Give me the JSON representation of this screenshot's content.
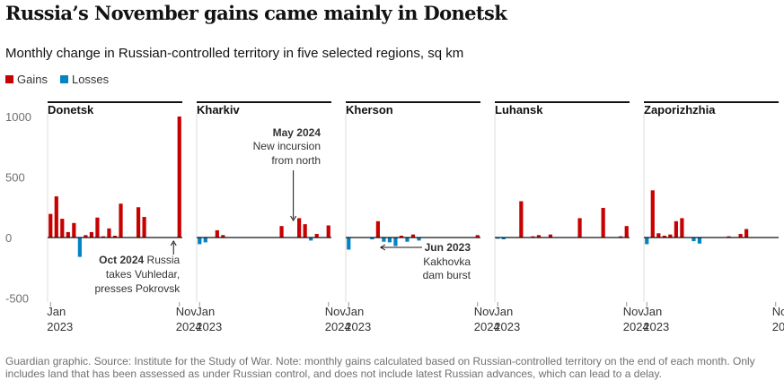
{
  "title": "Russia’s November gains came mainly in Donetsk",
  "subtitle": "Monthly change in Russian-controlled territory in five selected regions, sq km",
  "legend": {
    "gains_label": "Gains",
    "losses_label": "Losses",
    "gains_color": "#c70000",
    "losses_color": "#0084c6"
  },
  "footer": "Guardian graphic. Source: Institute for the Study of War. Note: monthly gains calculated based on Russian-controlled territory on the end of each month. Only includes land that has been assessed as under Russian control, and does not include latest Russian advances, which can lead to a delay.",
  "chart_data": {
    "type": "bar",
    "months": [
      "Jan 2023",
      "Feb 2023",
      "Mar 2023",
      "Apr 2023",
      "May 2023",
      "Jun 2023",
      "Jul 2023",
      "Aug 2023",
      "Sep 2023",
      "Oct 2023",
      "Nov 2023",
      "Dec 2023",
      "Jan 2024",
      "Feb 2024",
      "Mar 2024",
      "Apr 2024",
      "May 2024",
      "Jun 2024",
      "Jul 2024",
      "Aug 2024",
      "Sep 2024",
      "Oct 2024",
      "Nov 2024"
    ],
    "ylim": [
      -500,
      1000
    ],
    "yticks": [
      1000,
      500,
      0,
      -500
    ],
    "grid": false,
    "x_tick_labels": [
      {
        "month": 0,
        "top": "Jan",
        "bottom": "2023"
      },
      {
        "month": 22,
        "top": "Nov",
        "bottom": "2024"
      }
    ],
    "panels": [
      {
        "name": "Donetsk",
        "values": [
          195,
          340,
          155,
          45,
          120,
          -160,
          20,
          45,
          165,
          10,
          75,
          15,
          280,
          0,
          0,
          250,
          170,
          0,
          0,
          0,
          0,
          0,
          1000
        ]
      },
      {
        "name": "Kharkiv",
        "values": [
          -55,
          -40,
          0,
          60,
          20,
          0,
          0,
          0,
          0,
          0,
          0,
          0,
          0,
          0,
          95,
          0,
          0,
          160,
          110,
          -25,
          30,
          0,
          100
        ]
      },
      {
        "name": "Kherson",
        "values": [
          -100,
          0,
          0,
          0,
          -15,
          135,
          -35,
          -40,
          -70,
          15,
          -35,
          25,
          -25,
          0,
          0,
          0,
          0,
          0,
          0,
          0,
          0,
          0,
          20
        ]
      },
      {
        "name": "Luhansk",
        "values": [
          -10,
          -15,
          0,
          0,
          300,
          0,
          10,
          20,
          0,
          25,
          0,
          0,
          0,
          0,
          160,
          0,
          0,
          0,
          245,
          0,
          0,
          10,
          95
        ]
      },
      {
        "name": "Zaporizhzhia",
        "values": [
          -55,
          390,
          35,
          15,
          25,
          135,
          160,
          0,
          -30,
          -50,
          0,
          0,
          0,
          0,
          10,
          0,
          30,
          70,
          0,
          0,
          0,
          0,
          0
        ]
      }
    ],
    "annotations": [
      {
        "panel": 0,
        "month": 21,
        "bold": "Oct 2024",
        "text_a": " Russia",
        "text_b": "takes Vuhledar,",
        "text_c": "presses Pokrovsk"
      },
      {
        "panel": 1,
        "month": 16,
        "bold": "May 2024",
        "text_a": "New incursion",
        "text_b": "from north"
      },
      {
        "panel": 2,
        "month": 5,
        "bold": "Jun 2023",
        "text_a": "Kakhovka",
        "text_b": "dam burst"
      }
    ]
  }
}
